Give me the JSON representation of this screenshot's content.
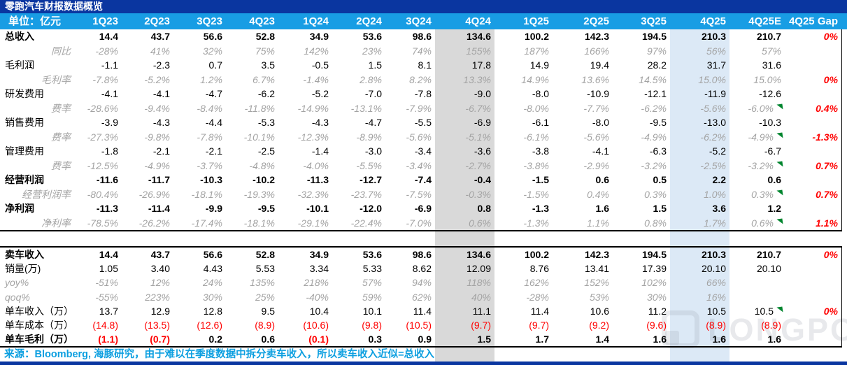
{
  "title": "零跑汽车财报数据概览",
  "colors": {
    "navy": "#0A36A0",
    "header_blue": "#189DE4",
    "footer_blue": "#0C9FE0",
    "gray_band": "#D9D9D9",
    "blue_band": "#DCE9F6",
    "sub_text_gray": "#A3A3A3",
    "negative_red": "#FF0000",
    "flag_green": "#00852E"
  },
  "watermark": {
    "brand": "LONGPORT"
  },
  "chart_data": {
    "type": "table",
    "title": "零跑汽车财报数据概览",
    "unit": "单位：亿元",
    "columns": [
      "1Q23",
      "2Q23",
      "3Q23",
      "4Q23",
      "1Q24",
      "2Q24",
      "3Q24",
      "4Q24",
      "1Q25",
      "2Q25",
      "3Q25",
      "4Q25",
      "4Q25E",
      "4Q25 Gap"
    ],
    "highlight_columns": {
      "gray": "4Q24",
      "light_blue": "4Q25"
    },
    "source_note": "来源：Bloomberg, 海豚研究，由于难以在季度数据中拆分卖车收入，所以卖车收入近似=总收入",
    "sections": [
      {
        "name": "income_statement",
        "rows": [
          {
            "label": "总收入",
            "style": "bold",
            "values": [
              "14.4",
              "43.7",
              "56.6",
              "52.8",
              "34.9",
              "53.6",
              "98.6",
              "134.6",
              "100.2",
              "142.3",
              "194.5",
              "210.3",
              "210.7"
            ],
            "gap": "0%",
            "flag": false
          },
          {
            "label": "同比",
            "style": "sub",
            "values": [
              "-28%",
              "41%",
              "32%",
              "75%",
              "142%",
              "23%",
              "74%",
              "155%",
              "187%",
              "166%",
              "97%",
              "56%",
              "57%"
            ],
            "gap": "",
            "flag": false
          },
          {
            "label": "毛利润",
            "style": "normal",
            "values": [
              "-1.1",
              "-2.3",
              "0.7",
              "3.5",
              "-0.5",
              "1.5",
              "8.1",
              "17.8",
              "14.9",
              "19.4",
              "28.2",
              "31.7",
              "31.6"
            ],
            "gap": "",
            "flag": false
          },
          {
            "label": "毛利率",
            "style": "sub",
            "values": [
              "-7.8%",
              "-5.2%",
              "1.2%",
              "6.7%",
              "-1.4%",
              "2.8%",
              "8.2%",
              "13.3%",
              "14.9%",
              "13.6%",
              "14.5%",
              "15.0%",
              "15.0%"
            ],
            "gap": "0%",
            "flag": false
          },
          {
            "label": "研发费用",
            "style": "normal",
            "values": [
              "-4.1",
              "-4.1",
              "-4.7",
              "-6.2",
              "-5.2",
              "-7.0",
              "-7.8",
              "-9.0",
              "-8.0",
              "-10.9",
              "-12.1",
              "-11.9",
              "-12.6"
            ],
            "gap": "",
            "flag": false
          },
          {
            "label": "费率",
            "style": "sub",
            "values": [
              "-28.6%",
              "-9.4%",
              "-8.4%",
              "-11.8%",
              "-14.9%",
              "-13.1%",
              "-7.9%",
              "-6.7%",
              "-8.0%",
              "-7.7%",
              "-6.2%",
              "-5.6%",
              "-6.0%"
            ],
            "gap": "0.4%",
            "flag": true
          },
          {
            "label": "销售费用",
            "style": "normal",
            "values": [
              "-3.9",
              "-4.3",
              "-4.4",
              "-5.3",
              "-4.3",
              "-4.7",
              "-5.5",
              "-6.9",
              "-6.1",
              "-8.0",
              "-9.5",
              "-13.0",
              "-10.3"
            ],
            "gap": "",
            "flag": false
          },
          {
            "label": "费率",
            "style": "sub",
            "values": [
              "-27.3%",
              "-9.8%",
              "-7.8%",
              "-10.1%",
              "-12.3%",
              "-8.9%",
              "-5.6%",
              "-5.1%",
              "-6.1%",
              "-5.6%",
              "-4.9%",
              "-6.2%",
              "-4.9%"
            ],
            "gap": "-1.3%",
            "flag": true
          },
          {
            "label": "管理费用",
            "style": "normal",
            "values": [
              "-1.8",
              "-2.1",
              "-2.1",
              "-2.5",
              "-1.4",
              "-3.0",
              "-3.4",
              "-3.6",
              "-3.8",
              "-4.1",
              "-6.3",
              "-5.2",
              "-6.7"
            ],
            "gap": "",
            "flag": false
          },
          {
            "label": "费率",
            "style": "sub",
            "values": [
              "-12.5%",
              "-4.9%",
              "-3.7%",
              "-4.8%",
              "-4.0%",
              "-5.5%",
              "-3.4%",
              "-2.7%",
              "-3.8%",
              "-2.9%",
              "-3.2%",
              "-2.5%",
              "-3.2%"
            ],
            "gap": "0.7%",
            "flag": true
          },
          {
            "label": "经营利润",
            "style": "bold",
            "values": [
              "-11.6",
              "-11.7",
              "-10.3",
              "-10.2",
              "-11.3",
              "-12.7",
              "-7.4",
              "-0.4",
              "-1.5",
              "0.6",
              "0.5",
              "2.2",
              "0.6"
            ],
            "gap": "",
            "flag": false
          },
          {
            "label": "经营利润率",
            "style": "sub",
            "values": [
              "-80.4%",
              "-26.9%",
              "-18.1%",
              "-19.3%",
              "-32.3%",
              "-23.7%",
              "-7.5%",
              "-0.3%",
              "-1.5%",
              "0.4%",
              "0.3%",
              "1.0%",
              "0.3%"
            ],
            "gap": "0.7%",
            "flag": true
          },
          {
            "label": "净利润",
            "style": "bold",
            "values": [
              "-11.3",
              "-11.4",
              "-9.9",
              "-9.5",
              "-10.1",
              "-12.0",
              "-6.9",
              "0.8",
              "-1.3",
              "1.6",
              "1.5",
              "3.6",
              "1.2"
            ],
            "gap": "",
            "flag": false
          },
          {
            "label": "净利率",
            "style": "sub",
            "values": [
              "-78.5%",
              "-26.2%",
              "-17.4%",
              "-18.1%",
              "-29.1%",
              "-22.4%",
              "-7.0%",
              "0.6%",
              "-1.3%",
              "1.1%",
              "0.8%",
              "1.7%",
              "0.6%"
            ],
            "gap": "1.1%",
            "flag": true
          }
        ]
      },
      {
        "name": "car_sales",
        "rows": [
          {
            "label": "卖车收入",
            "style": "bold",
            "values": [
              "14.4",
              "43.7",
              "56.6",
              "52.8",
              "34.9",
              "53.6",
              "98.6",
              "134.6",
              "100.2",
              "142.3",
              "194.5",
              "210.3",
              "210.7"
            ],
            "gap": "0%",
            "flag": false
          },
          {
            "label": "销量(万)",
            "style": "normal",
            "values": [
              "1.05",
              "3.40",
              "4.43",
              "5.53",
              "3.34",
              "5.33",
              "8.62",
              "12.09",
              "8.76",
              "13.41",
              "17.39",
              "20.10",
              "20.10"
            ],
            "gap": "",
            "flag": false
          },
          {
            "label": "yoy%",
            "style": "sub-left",
            "values": [
              "-51%",
              "12%",
              "24%",
              "135%",
              "218%",
              "57%",
              "94%",
              "118%",
              "162%",
              "152%",
              "102%",
              "66%",
              ""
            ],
            "gap": "",
            "flag": false
          },
          {
            "label": "qoq%",
            "style": "sub-left",
            "values": [
              "-55%",
              "223%",
              "30%",
              "25%",
              "-40%",
              "59%",
              "62%",
              "40%",
              "-28%",
              "53%",
              "30%",
              "16%",
              ""
            ],
            "gap": "",
            "flag": false
          },
          {
            "label": "单车收入（万）",
            "style": "normal",
            "values": [
              "13.7",
              "12.9",
              "12.8",
              "9.5",
              "10.4",
              "10.1",
              "11.4",
              "11.1",
              "11.4",
              "10.6",
              "11.2",
              "10.5",
              "10.5"
            ],
            "gap": "0%",
            "flag": true
          },
          {
            "label": "单车成本（万）",
            "style": "normal",
            "values": [
              "(14.8)",
              "(13.5)",
              "(12.6)",
              "(8.9)",
              "(10.6)",
              "(9.8)",
              "(10.5)",
              "(9.7)",
              "(9.7)",
              "(9.2)",
              "(9.6)",
              "(8.9)",
              "(8.9)"
            ],
            "gap": "",
            "flag": false
          },
          {
            "label": "单车毛利（万）",
            "style": "bold",
            "values": [
              "(1.1)",
              "(0.7)",
              "0.2",
              "0.6",
              "(0.1)",
              "0.3",
              "0.9",
              "1.5",
              "1.7",
              "1.4",
              "1.6",
              "1.6",
              "1.6"
            ],
            "gap": "",
            "flag": false
          }
        ]
      }
    ]
  }
}
